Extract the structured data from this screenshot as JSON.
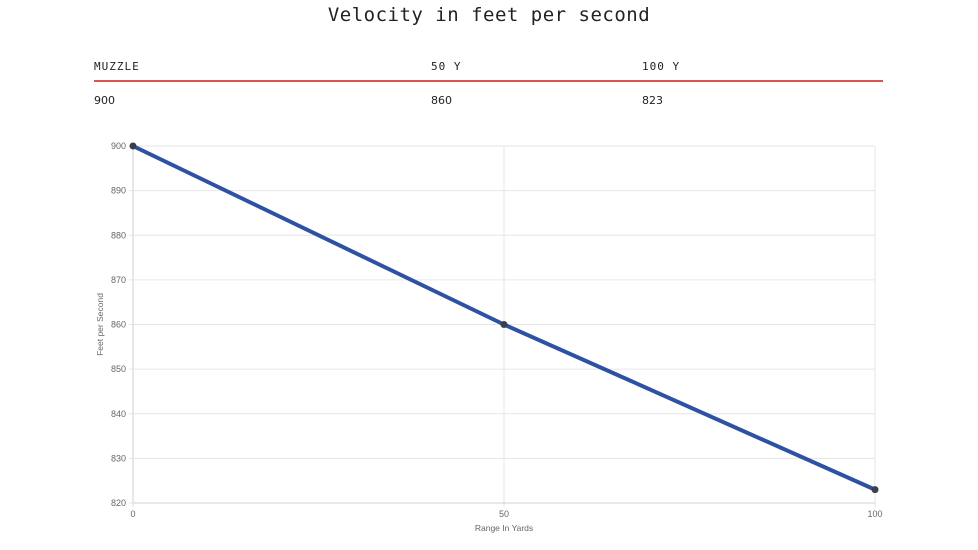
{
  "title": "Velocity in feet per second",
  "table": {
    "headers": [
      "MUZZLE",
      "50 Y",
      "100 Y"
    ],
    "values": [
      "900",
      "860",
      "823"
    ]
  },
  "chart_data": {
    "type": "line",
    "x": [
      0,
      50,
      100
    ],
    "series": [
      {
        "values": [
          900,
          860,
          823
        ]
      }
    ],
    "xlabel": "Range In Yards",
    "ylabel": "Feet per Second",
    "xlim": [
      0,
      100
    ],
    "ylim": [
      820,
      900
    ],
    "xticks": [
      "0",
      "50",
      "100"
    ],
    "yticks": [
      "820",
      "830",
      "840",
      "850",
      "860",
      "870",
      "880",
      "890",
      "900"
    ],
    "grid": true,
    "line_color": "#2e52a3",
    "point_color": "#3b3f4a"
  }
}
